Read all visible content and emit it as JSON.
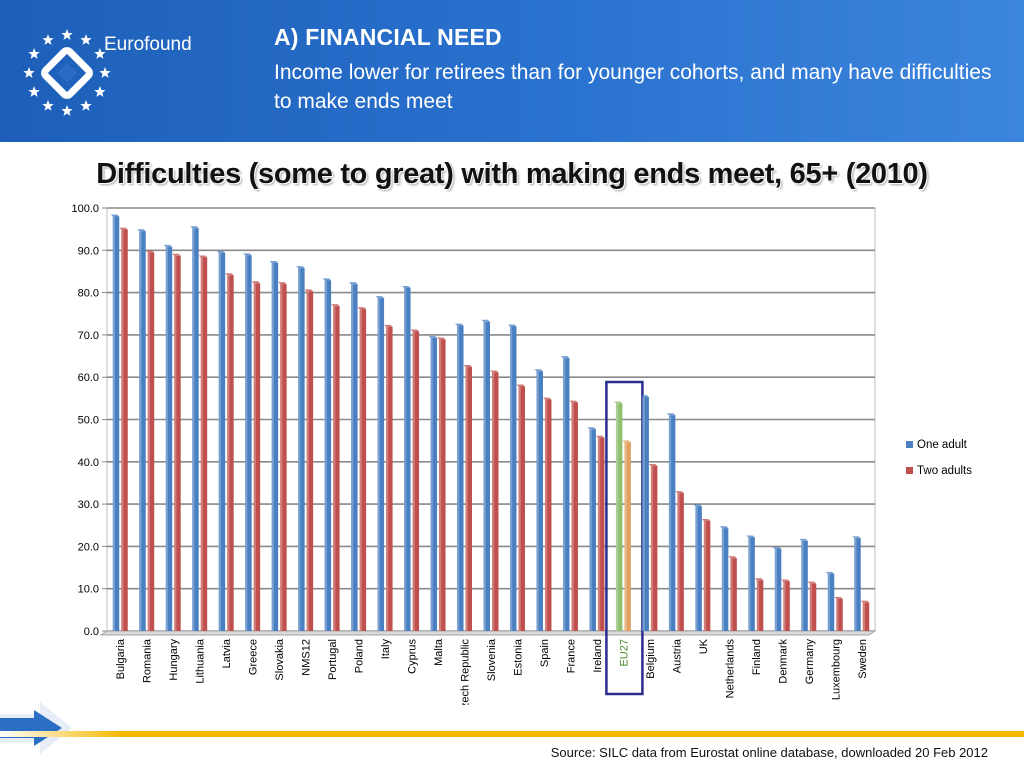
{
  "header": {
    "logo_text": "Eurofound",
    "title": "A) FINANCIAL NEED",
    "subtitle": "Income lower for retirees than for younger cohorts, and many have difficulties to make ends meet"
  },
  "footer": {
    "source": "Source: SILC data from Eurostat online database, downloaded 20 Feb 2012"
  },
  "colors": {
    "one_adult": "#4a7fc1",
    "two_adults": "#c0504d",
    "highlight_frame": "#2a2e8c",
    "highlight_one": "#8fbf6f",
    "highlight_two": "#e0a060"
  },
  "chart_data": {
    "type": "bar",
    "title": "Difficulties (some to great) with making ends meet, 65+ (2010)",
    "categories": [
      "Bulgaria",
      "Romania",
      "Hungary",
      "Lithuania",
      "Latvia",
      "Greece",
      "Slovakia",
      "NMS12",
      "Portugal",
      "Poland",
      "Italy",
      "Cyprus",
      "Malta",
      "Czech Republic",
      "Slovenia",
      "Estonia",
      "Spain",
      "France",
      "Ireland",
      "EU27",
      "Belgium",
      "Austria",
      "UK",
      "Netherlands",
      "Finland",
      "Denmark",
      "Germany",
      "Luxembourg",
      "Sweden"
    ],
    "series": [
      {
        "name": "One adult",
        "values": [
          98.0,
          94.5,
          90.8,
          95.2,
          89.4,
          88.8,
          87.0,
          85.8,
          82.9,
          82.0,
          78.7,
          81.1,
          69.3,
          72.2,
          73.1,
          72.0,
          61.4,
          64.5,
          47.7,
          53.8,
          55.3,
          51.0,
          29.5,
          24.3,
          22.1,
          19.4,
          21.3,
          13.5,
          21.9
        ]
      },
      {
        "name": "Two adults",
        "values": [
          94.9,
          89.5,
          88.7,
          88.3,
          84.1,
          82.2,
          82.0,
          80.3,
          76.8,
          76.1,
          71.9,
          70.8,
          68.9,
          62.4,
          61.1,
          57.8,
          54.7,
          54.0,
          45.7,
          44.6,
          39.0,
          32.6,
          26.0,
          17.2,
          12.0,
          11.7,
          11.2,
          7.6,
          6.7
        ]
      }
    ],
    "highlight": "EU27",
    "ylim": [
      0,
      100
    ],
    "yticks": [
      "0.0",
      "10.0",
      "20.0",
      "30.0",
      "40.0",
      "50.0",
      "60.0",
      "70.0",
      "80.0",
      "90.0",
      "100.0"
    ],
    "legend_position": "right",
    "grid": true
  }
}
